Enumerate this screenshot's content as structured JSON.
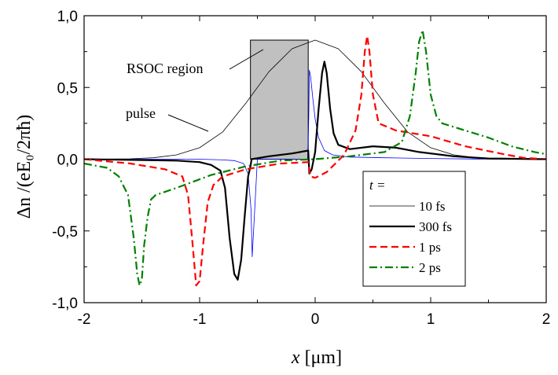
{
  "chart_data": {
    "type": "line",
    "xlabel_var": "x",
    "xlabel_unit": "[μm]",
    "ylabel": "Δn /(eE₀/2πħ)",
    "xlim": [
      -2,
      2
    ],
    "ylim": [
      -1.0,
      1.0
    ],
    "x_ticks": [
      "-2",
      "-1",
      "0",
      "1",
      "2"
    ],
    "y_ticks": [
      "-1,0",
      "-0,5",
      "0,0",
      "0,5",
      "1,0"
    ],
    "grid": false,
    "annotations": [
      {
        "text": "RSOC region",
        "target_x": -0.45,
        "target_y": 0.55
      },
      {
        "text": "pulse",
        "target_x": -0.75,
        "target_y": 0.18
      }
    ],
    "region": {
      "label": "RSOC region",
      "x_start": -0.56,
      "x_end": -0.06,
      "y_top": 0.83,
      "color": "#c0c0c0"
    },
    "legend_title": "t =",
    "legend_position": "lower-right",
    "series": [
      {
        "name": "pulse",
        "style": "thin-black",
        "color": "#000000",
        "x": [
          -2,
          -1.8,
          -1.6,
          -1.4,
          -1.2,
          -1.0,
          -0.8,
          -0.6,
          -0.4,
          -0.2,
          0.0,
          0.2,
          0.4,
          0.6,
          0.8,
          1.0,
          1.2,
          1.4,
          1.6,
          1.8,
          2.0
        ],
        "y": [
          0.0,
          0.001,
          0.003,
          0.01,
          0.03,
          0.08,
          0.19,
          0.39,
          0.61,
          0.77,
          0.83,
          0.77,
          0.61,
          0.39,
          0.19,
          0.08,
          0.03,
          0.01,
          0.003,
          0.001,
          0.0
        ]
      },
      {
        "name": "10 fs",
        "style": "thin-blue",
        "color": "#0000ff",
        "x": [
          -2,
          -1.0,
          -0.8,
          -0.7,
          -0.62,
          -0.58,
          -0.555,
          -0.545,
          -0.5,
          -0.3,
          -0.1,
          -0.065,
          -0.055,
          -0.05,
          -0.04,
          -0.02,
          0.0,
          0.03,
          0.08,
          0.15,
          0.3,
          0.6,
          1.0,
          1.4,
          2.0
        ],
        "y": [
          0.0,
          0.0,
          -0.005,
          -0.01,
          -0.03,
          -0.1,
          -0.35,
          -0.68,
          0.0,
          0.0,
          0.0,
          0.0,
          0.3,
          0.62,
          0.58,
          0.42,
          0.28,
          0.15,
          0.06,
          0.03,
          0.015,
          0.01,
          0.005,
          0.001,
          0.0
        ]
      },
      {
        "name": "300 fs",
        "style": "thick-black",
        "color": "#000000",
        "x": [
          -2,
          -1.2,
          -1.0,
          -0.9,
          -0.82,
          -0.78,
          -0.74,
          -0.7,
          -0.67,
          -0.64,
          -0.61,
          -0.58,
          -0.56,
          -0.55,
          -0.4,
          -0.2,
          -0.06,
          -0.05,
          -0.03,
          0.0,
          0.03,
          0.06,
          0.08,
          0.1,
          0.13,
          0.16,
          0.2,
          0.3,
          0.5,
          0.7,
          0.9,
          1.2,
          1.5,
          2.0
        ],
        "y": [
          0.0,
          -0.01,
          -0.02,
          -0.04,
          -0.08,
          -0.2,
          -0.55,
          -0.8,
          -0.84,
          -0.7,
          -0.4,
          -0.12,
          -0.05,
          0.0,
          0.02,
          0.04,
          0.06,
          -0.1,
          -0.07,
          0.05,
          0.35,
          0.6,
          0.68,
          0.6,
          0.35,
          0.18,
          0.1,
          0.07,
          0.09,
          0.08,
          0.05,
          0.02,
          0.005,
          0.0
        ]
      },
      {
        "name": "1 ps",
        "style": "red-dashed",
        "color": "#ff0000",
        "x": [
          -2,
          -1.6,
          -1.3,
          -1.15,
          -1.1,
          -1.06,
          -1.03,
          -1.0,
          -0.97,
          -0.93,
          -0.88,
          -0.8,
          -0.6,
          -0.3,
          -0.06,
          -0.04,
          0.0,
          0.1,
          0.25,
          0.35,
          0.4,
          0.43,
          0.45,
          0.47,
          0.5,
          0.55,
          0.7,
          1.0,
          1.3,
          1.6,
          1.8,
          2.0
        ],
        "y": [
          0.0,
          -0.03,
          -0.07,
          -0.12,
          -0.25,
          -0.6,
          -0.88,
          -0.85,
          -0.6,
          -0.3,
          -0.18,
          -0.12,
          -0.07,
          -0.03,
          -0.02,
          -0.12,
          -0.13,
          -0.09,
          0.03,
          0.2,
          0.45,
          0.75,
          0.86,
          0.75,
          0.45,
          0.25,
          0.2,
          0.16,
          0.09,
          0.04,
          0.01,
          0.0
        ]
      },
      {
        "name": "2 ps",
        "style": "green-dash-dot",
        "color": "#008000",
        "x": [
          -2,
          -1.8,
          -1.7,
          -1.62,
          -1.57,
          -1.54,
          -1.52,
          -1.5,
          -1.48,
          -1.45,
          -1.42,
          -1.38,
          -1.2,
          -0.9,
          -0.6,
          -0.3,
          0.0,
          0.3,
          0.6,
          0.75,
          0.82,
          0.87,
          0.9,
          0.93,
          0.96,
          1.0,
          1.05,
          1.1,
          1.3,
          1.5,
          1.7,
          1.9,
          2.0
        ],
        "y": [
          -0.03,
          -0.06,
          -0.12,
          -0.25,
          -0.55,
          -0.8,
          -0.88,
          -0.84,
          -0.6,
          -0.4,
          -0.28,
          -0.25,
          -0.2,
          -0.11,
          -0.05,
          -0.01,
          0.0,
          0.02,
          0.05,
          0.12,
          0.3,
          0.6,
          0.82,
          0.9,
          0.75,
          0.45,
          0.3,
          0.25,
          0.2,
          0.15,
          0.09,
          0.05,
          0.035
        ]
      }
    ]
  }
}
